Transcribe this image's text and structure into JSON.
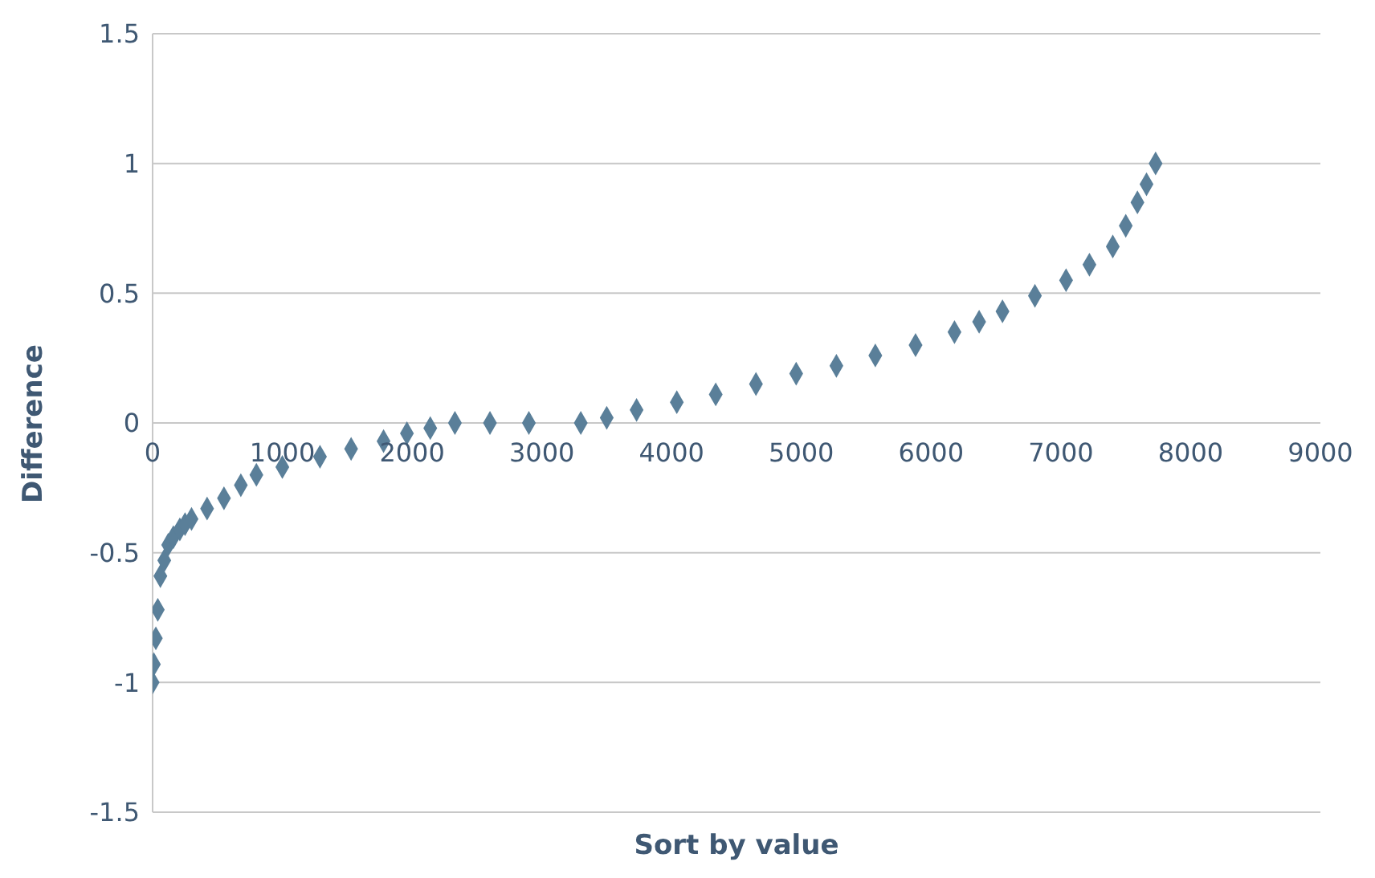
{
  "chart_data": {
    "type": "scatter",
    "xlabel": "Sort by value",
    "ylabel": "Difference",
    "xlim": [
      0,
      9000
    ],
    "xticks": [
      0,
      1000,
      2000,
      3000,
      4000,
      5000,
      6000,
      7000,
      8000,
      9000
    ],
    "ylim": [
      -1.5,
      1.5
    ],
    "yticks": [
      -1.5,
      -1,
      -0.5,
      0,
      0.5,
      1,
      1.5
    ],
    "grid": "y",
    "marker": "diamond",
    "x": [
      0,
      10,
      25,
      40,
      60,
      90,
      120,
      160,
      210,
      250,
      300,
      420,
      550,
      680,
      800,
      1000,
      1290,
      1530,
      1780,
      1960,
      2140,
      2330,
      2600,
      2900,
      3300,
      3500,
      3730,
      4040,
      4340,
      4650,
      4960,
      5270,
      5570,
      5880,
      6180,
      6370,
      6550,
      6800,
      7040,
      7220,
      7400,
      7500,
      7590,
      7660,
      7730
    ],
    "series": [
      {
        "color": "#5a7f99",
        "values": [
          -1,
          -0.93,
          -0.83,
          -0.72,
          -0.59,
          -0.53,
          -0.47,
          -0.44,
          -0.41,
          -0.39,
          -0.37,
          -0.33,
          -0.29,
          -0.24,
          -0.2,
          -0.17,
          -0.13,
          -0.1,
          -0.07,
          -0.04,
          -0.02,
          0,
          0,
          0,
          0,
          0.02,
          0.05,
          0.08,
          0.11,
          0.15,
          0.19,
          0.22,
          0.26,
          0.3,
          0.35,
          0.39,
          0.43,
          0.49,
          0.55,
          0.61,
          0.68,
          0.76,
          0.85,
          0.92,
          1
        ]
      }
    ]
  }
}
